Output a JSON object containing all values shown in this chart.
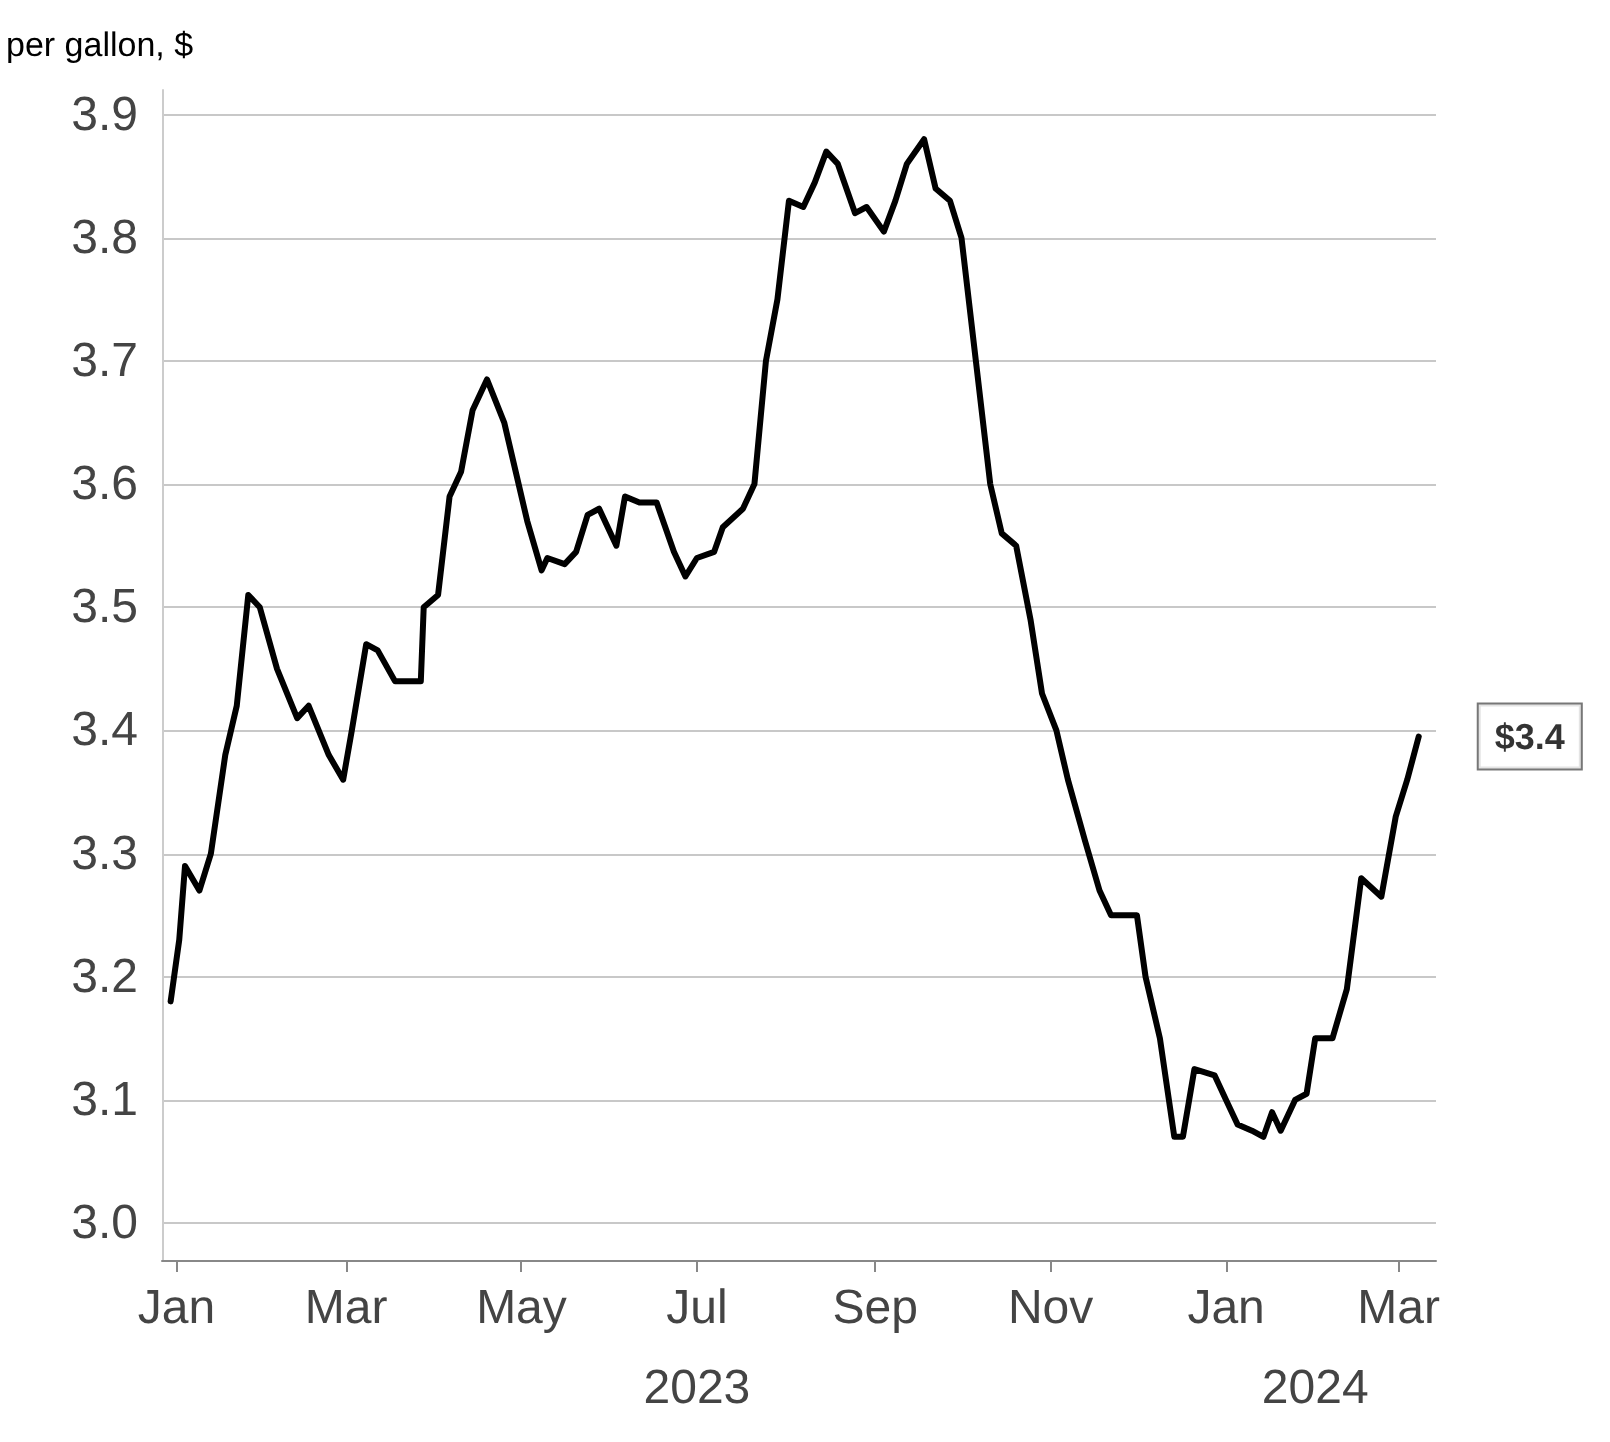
{
  "chart_data": {
    "type": "line",
    "ylabel": "per gallon, $",
    "color": "#000000",
    "x": [
      "2022-12-30",
      "2023-01-02",
      "2023-01-04",
      "2023-01-09",
      "2023-01-13",
      "2023-01-18",
      "2023-01-22",
      "2023-01-26",
      "2023-01-30",
      "2023-02-05",
      "2023-02-12",
      "2023-02-16",
      "2023-02-23",
      "2023-02-28",
      "2023-03-03",
      "2023-03-08",
      "2023-03-12",
      "2023-03-18",
      "2023-03-22",
      "2023-03-27",
      "2023-03-28",
      "2023-04-02",
      "2023-04-06",
      "2023-04-10",
      "2023-04-14",
      "2023-04-19",
      "2023-04-25",
      "2023-04-29",
      "2023-05-03",
      "2023-05-08",
      "2023-05-10",
      "2023-05-16",
      "2023-05-20",
      "2023-05-24",
      "2023-05-28",
      "2023-06-03",
      "2023-06-06",
      "2023-06-11",
      "2023-06-17",
      "2023-06-23",
      "2023-06-27",
      "2023-07-01",
      "2023-07-07",
      "2023-07-10",
      "2023-07-17",
      "2023-07-21",
      "2023-07-25",
      "2023-07-29",
      "2023-08-02",
      "2023-08-07",
      "2023-08-11",
      "2023-08-15",
      "2023-08-19",
      "2023-08-25",
      "2023-08-29",
      "2023-09-04",
      "2023-09-08",
      "2023-09-12",
      "2023-09-18",
      "2023-09-22",
      "2023-09-27",
      "2023-10-01",
      "2023-10-06",
      "2023-10-11",
      "2023-10-15",
      "2023-10-20",
      "2023-10-25",
      "2023-10-29",
      "2023-11-03",
      "2023-11-07",
      "2023-11-13",
      "2023-11-18",
      "2023-11-22",
      "2023-12-01",
      "2023-12-04",
      "2023-12-09",
      "2023-12-14",
      "2023-12-17",
      "2023-12-21",
      "2023-12-28",
      "2024-01-01",
      "2024-01-05",
      "2024-01-10",
      "2024-01-14",
      "2024-01-17",
      "2024-01-20",
      "2024-01-25",
      "2024-01-29",
      "2024-02-01",
      "2024-02-07",
      "2024-02-12",
      "2024-02-17",
      "2024-02-24",
      "2024-02-29",
      "2024-03-04",
      "2024-03-08"
    ],
    "values": [
      3.18,
      3.23,
      3.29,
      3.27,
      3.3,
      3.38,
      3.42,
      3.51,
      3.5,
      3.45,
      3.41,
      3.42,
      3.38,
      3.36,
      3.4,
      3.47,
      3.465,
      3.44,
      3.44,
      3.44,
      3.5,
      3.51,
      3.59,
      3.61,
      3.66,
      3.685,
      3.65,
      3.61,
      3.57,
      3.53,
      3.54,
      3.535,
      3.545,
      3.575,
      3.58,
      3.55,
      3.59,
      3.585,
      3.585,
      3.545,
      3.525,
      3.54,
      3.545,
      3.565,
      3.58,
      3.6,
      3.7,
      3.75,
      3.83,
      3.825,
      3.845,
      3.87,
      3.86,
      3.82,
      3.825,
      3.805,
      3.83,
      3.86,
      3.88,
      3.84,
      3.83,
      3.8,
      3.7,
      3.6,
      3.56,
      3.55,
      3.49,
      3.43,
      3.4,
      3.36,
      3.31,
      3.27,
      3.25,
      3.25,
      3.2,
      3.15,
      3.07,
      3.07,
      3.125,
      3.12,
      3.1,
      3.08,
      3.075,
      3.07,
      3.09,
      3.075,
      3.1,
      3.105,
      3.15,
      3.15,
      3.19,
      3.28,
      3.265,
      3.33,
      3.36,
      3.395
    ],
    "xlim": [
      "2022-12-27",
      "2024-03-14"
    ],
    "xticks": [
      {
        "value": "2023-01-01",
        "label": "Jan"
      },
      {
        "value": "2023-03-01",
        "label": "Mar"
      },
      {
        "value": "2023-05-01",
        "label": "May"
      },
      {
        "value": "2023-07-01",
        "label": "Jul"
      },
      {
        "value": "2023-09-01",
        "label": "Sep"
      },
      {
        "value": "2023-11-01",
        "label": "Nov"
      },
      {
        "value": "2024-01-01",
        "label": "Jan"
      },
      {
        "value": "2024-03-01",
        "label": "Mar"
      }
    ],
    "x2lim": [
      "2022-12-27",
      "2024-03-14"
    ],
    "x2ticks": [
      {
        "value": "2023-07-01",
        "label": "2023"
      },
      {
        "value": "2024-02-01",
        "label": "2024"
      }
    ],
    "ylim": [
      2.97,
      3.92
    ],
    "yticks": [
      {
        "value": 3.0,
        "label": "3.0"
      },
      {
        "value": 3.1,
        "label": "3.1"
      },
      {
        "value": 3.2,
        "label": "3.2"
      },
      {
        "value": 3.3,
        "label": "3.3"
      },
      {
        "value": 3.4,
        "label": "3.4"
      },
      {
        "value": 3.5,
        "label": "3.5"
      },
      {
        "value": 3.6,
        "label": "3.6"
      },
      {
        "value": 3.7,
        "label": "3.7"
      },
      {
        "value": 3.8,
        "label": "3.8"
      },
      {
        "value": 3.9,
        "label": "3.9"
      }
    ],
    "annotations": [
      {
        "text": "$3.4",
        "x": "2024-03-08",
        "y": 3.395
      }
    ],
    "grid": "y",
    "marker": "none",
    "line_style": "solid"
  }
}
